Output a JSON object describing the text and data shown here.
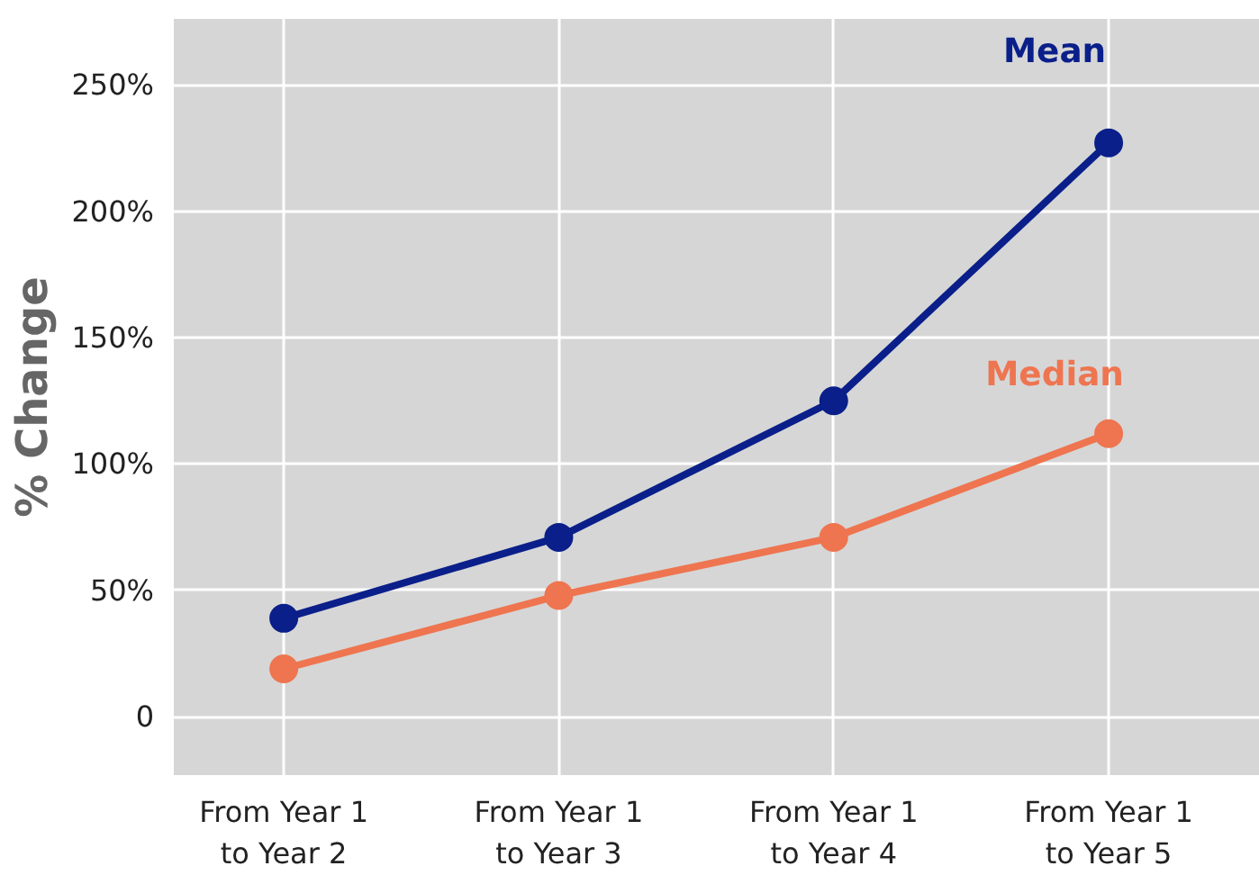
{
  "chart_data": {
    "type": "line",
    "ylabel": "% Change",
    "categories": [
      "From Year 1\nto Year 2",
      "From Year 1\nto Year 3",
      "From Year 1\nto Year 4",
      "From Year 1\nto Year 5"
    ],
    "series": [
      {
        "name": "Mean",
        "color": "#0a1f8a",
        "values": [
          39,
          71,
          125,
          227
        ]
      },
      {
        "name": "Median",
        "color": "#ee7550",
        "values": [
          19,
          48,
          71,
          112
        ]
      }
    ],
    "ylim": [
      -23,
      276
    ],
    "yticks": [
      {
        "value": 0,
        "label": "0"
      },
      {
        "value": 50,
        "label": "50%"
      },
      {
        "value": 100,
        "label": "100%"
      },
      {
        "value": 150,
        "label": "150%"
      },
      {
        "value": 200,
        "label": "200%"
      },
      {
        "value": 250,
        "label": "250%"
      }
    ],
    "grid": true,
    "marker": "circle",
    "line_style": "solid"
  }
}
